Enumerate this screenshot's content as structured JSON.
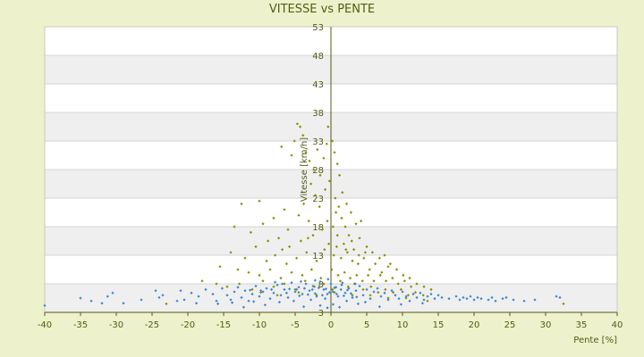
{
  "chart_data": {
    "type": "scatter",
    "title": "VITESSE vs PENTE",
    "xlabel": "Pente [%]",
    "ylabel": "Vitesse [km/h]",
    "xlim": [
      -40,
      40
    ],
    "ylim": [
      3,
      53
    ],
    "x_ticks": [
      -40,
      -35,
      -30,
      -25,
      -20,
      -15,
      -10,
      -5,
      0,
      5,
      10,
      15,
      20,
      25,
      30,
      35,
      40
    ],
    "y_ticks": [
      3,
      8,
      13,
      18,
      23,
      28,
      33,
      38,
      43,
      48,
      53
    ],
    "grid": true,
    "series": [
      {
        "color": "#8c8c00",
        "marker": "diamond",
        "points": [
          [
            -6.9,
            32.0
          ],
          [
            -5.5,
            30.5
          ],
          [
            -5.1,
            33.0
          ],
          [
            -4.7,
            36.0
          ],
          [
            -4.3,
            35.5
          ],
          [
            -3.9,
            34.0
          ],
          [
            -3.5,
            31.0
          ],
          [
            -3.0,
            29.5
          ],
          [
            -2.4,
            28.0
          ],
          [
            -1.9,
            31.5
          ],
          [
            -1.5,
            27.0
          ],
          [
            -1.0,
            30.0
          ],
          [
            -0.6,
            32.5
          ],
          [
            -0.4,
            35.5
          ],
          [
            0.2,
            33.0
          ],
          [
            0.5,
            31.0
          ],
          [
            0.9,
            29.0
          ],
          [
            -2.8,
            25.5
          ],
          [
            -0.2,
            26.0
          ],
          [
            1.2,
            27.0
          ],
          [
            -12.5,
            22.0
          ],
          [
            -10.0,
            22.5
          ],
          [
            -9.5,
            18.5
          ],
          [
            -8.0,
            19.5
          ],
          [
            -6.5,
            21.0
          ],
          [
            -6.0,
            17.5
          ],
          [
            -4.5,
            20.0
          ],
          [
            -3.8,
            22.0
          ],
          [
            -3.1,
            19.0
          ],
          [
            -2.2,
            23.5
          ],
          [
            -1.6,
            21.5
          ],
          [
            -0.8,
            24.5
          ],
          [
            0.6,
            23.0
          ],
          [
            1.1,
            21.5
          ],
          [
            1.6,
            24.0
          ],
          [
            2.2,
            22.0
          ],
          [
            2.8,
            20.5
          ],
          [
            3.5,
            18.5
          ],
          [
            4.2,
            19.0
          ],
          [
            -13.5,
            18.0
          ],
          [
            -11.2,
            17.0
          ],
          [
            -7.3,
            16.0
          ],
          [
            -5.8,
            14.5
          ],
          [
            -2.5,
            16.5
          ],
          [
            -1.2,
            17.5
          ],
          [
            0.3,
            18.0
          ],
          [
            0.9,
            16.5
          ],
          [
            1.8,
            15.0
          ],
          [
            2.5,
            16.5
          ],
          [
            3.2,
            14.0
          ],
          [
            -14.0,
            13.5
          ],
          [
            -12.0,
            12.5
          ],
          [
            -10.5,
            14.5
          ],
          [
            -9.0,
            12.0
          ],
          [
            -7.8,
            13.0
          ],
          [
            -6.2,
            11.5
          ],
          [
            -4.8,
            12.5
          ],
          [
            -3.4,
            13.5
          ],
          [
            -2.0,
            12.0
          ],
          [
            -0.9,
            14.0
          ],
          [
            0.4,
            13.0
          ],
          [
            1.4,
            12.5
          ],
          [
            2.3,
            13.5
          ],
          [
            3.0,
            12.0
          ],
          [
            3.8,
            11.5
          ],
          [
            4.6,
            12.5
          ],
          [
            5.4,
            10.5
          ],
          [
            6.2,
            11.5
          ],
          [
            7.1,
            10.0
          ],
          [
            8.0,
            11.0
          ],
          [
            -15.5,
            11.0
          ],
          [
            -13.0,
            10.5
          ],
          [
            -11.5,
            10.0
          ],
          [
            -10.0,
            9.5
          ],
          [
            -8.5,
            10.5
          ],
          [
            -7.0,
            9.0
          ],
          [
            -5.5,
            10.0
          ],
          [
            -4.0,
            9.5
          ],
          [
            -2.7,
            10.5
          ],
          [
            -1.4,
            9.0
          ],
          [
            0.1,
            10.5
          ],
          [
            1.0,
            9.5
          ],
          [
            1.9,
            10.0
          ],
          [
            2.7,
            9.0
          ],
          [
            3.6,
            9.5
          ],
          [
            4.4,
            8.5
          ],
          [
            5.2,
            9.5
          ],
          [
            6.0,
            8.5
          ],
          [
            6.9,
            9.5
          ],
          [
            7.7,
            8.5
          ],
          [
            8.6,
            9.0
          ],
          [
            9.4,
            8.0
          ],
          [
            10.3,
            8.5
          ],
          [
            11.2,
            7.5
          ],
          [
            12.0,
            8.0
          ],
          [
            13.0,
            7.5
          ],
          [
            14.0,
            7.0
          ],
          [
            -18.0,
            8.5
          ],
          [
            -16.0,
            8.0
          ],
          [
            -14.5,
            7.5
          ],
          [
            -12.8,
            8.0
          ],
          [
            -11.0,
            7.0
          ],
          [
            -9.5,
            8.5
          ],
          [
            -8.0,
            7.5
          ],
          [
            -6.5,
            8.0
          ],
          [
            -5.0,
            7.0
          ],
          [
            -3.6,
            8.5
          ],
          [
            -2.3,
            7.5
          ],
          [
            -1.0,
            8.0
          ],
          [
            0.2,
            7.0
          ],
          [
            1.3,
            8.5
          ],
          [
            2.4,
            7.5
          ],
          [
            3.4,
            8.0
          ],
          [
            4.5,
            7.0
          ],
          [
            5.6,
            7.5
          ],
          [
            6.6,
            6.5
          ],
          [
            7.6,
            7.0
          ],
          [
            8.7,
            6.5
          ],
          [
            9.8,
            7.0
          ],
          [
            10.8,
            6.0
          ],
          [
            11.8,
            6.5
          ],
          [
            12.9,
            6.0
          ],
          [
            1.5,
            19.5
          ],
          [
            0.7,
            20.5
          ],
          [
            -0.5,
            19.0
          ],
          [
            2.0,
            18.0
          ],
          [
            4.0,
            16.0
          ],
          [
            5.0,
            14.5
          ],
          [
            5.8,
            13.5
          ],
          [
            6.8,
            12.5
          ],
          [
            7.5,
            13.0
          ],
          [
            8.3,
            11.5
          ],
          [
            9.2,
            10.5
          ],
          [
            10.1,
            9.5
          ],
          [
            11.0,
            9.0
          ],
          [
            -8.8,
            15.5
          ],
          [
            -6.8,
            14.0
          ],
          [
            -4.2,
            15.5
          ],
          [
            -3.2,
            16.0
          ],
          [
            -0.3,
            15.0
          ],
          [
            0.8,
            14.5
          ],
          [
            2.1,
            14.0
          ],
          [
            2.9,
            15.5
          ],
          [
            3.9,
            13.0
          ],
          [
            4.8,
            13.5
          ],
          [
            -9.8,
            6.5
          ],
          [
            -7.5,
            6.0
          ],
          [
            -4.5,
            6.5
          ],
          [
            -2.0,
            6.0
          ],
          [
            0.5,
            6.5
          ],
          [
            3.0,
            6.0
          ],
          [
            5.5,
            6.0
          ],
          [
            8.0,
            5.5
          ],
          [
            10.5,
            5.5
          ],
          [
            13.5,
            5.0
          ],
          [
            32.5,
            4.5
          ],
          [
            -23.0,
            4.5
          ]
        ]
      },
      {
        "color": "#3a86d0",
        "marker": "diamond",
        "points": [
          [
            -40.0,
            4.2
          ],
          [
            -35.0,
            5.5
          ],
          [
            -32.0,
            4.6
          ],
          [
            -31.2,
            5.8
          ],
          [
            -30.5,
            6.4
          ],
          [
            -29.0,
            4.6
          ],
          [
            -24.5,
            6.8
          ],
          [
            -24.0,
            5.6
          ],
          [
            -23.5,
            6.0
          ],
          [
            -21.0,
            6.8
          ],
          [
            -20.5,
            5.2
          ],
          [
            -19.5,
            6.4
          ],
          [
            -18.5,
            5.8
          ],
          [
            -17.5,
            7.0
          ],
          [
            -16.5,
            6.2
          ],
          [
            -16.0,
            5.0
          ],
          [
            -15.2,
            7.2
          ],
          [
            -14.5,
            6.0
          ],
          [
            -14.0,
            5.2
          ],
          [
            -13.5,
            6.6
          ],
          [
            -13.0,
            7.4
          ],
          [
            -12.5,
            5.6
          ],
          [
            -12.0,
            6.8
          ],
          [
            -11.5,
            5.0
          ],
          [
            -11.0,
            6.2
          ],
          [
            -10.5,
            7.6
          ],
          [
            -10.0,
            5.8
          ],
          [
            -9.5,
            6.6
          ],
          [
            -9.0,
            7.2
          ],
          [
            -8.5,
            5.4
          ],
          [
            -8.0,
            6.4
          ],
          [
            -7.5,
            7.8
          ],
          [
            -7.0,
            6.0
          ],
          [
            -6.5,
            7.0
          ],
          [
            -6.0,
            5.6
          ],
          [
            -5.5,
            8.2
          ],
          [
            -5.0,
            6.6
          ],
          [
            -4.5,
            7.4
          ],
          [
            -4.0,
            6.2
          ],
          [
            -3.5,
            8.0
          ],
          [
            -3.0,
            6.8
          ],
          [
            -2.5,
            7.6
          ],
          [
            -2.0,
            5.8
          ],
          [
            -1.5,
            8.4
          ],
          [
            -1.0,
            7.0
          ],
          [
            -0.5,
            6.2
          ],
          [
            0.0,
            8.0
          ],
          [
            0.3,
            6.6
          ],
          [
            0.7,
            7.4
          ],
          [
            1.0,
            5.8
          ],
          [
            1.5,
            7.8
          ],
          [
            2.0,
            6.4
          ],
          [
            2.5,
            7.2
          ],
          [
            3.0,
            5.6
          ],
          [
            3.5,
            6.8
          ],
          [
            4.0,
            7.6
          ],
          [
            4.5,
            6.0
          ],
          [
            5.0,
            7.0
          ],
          [
            5.5,
            5.4
          ],
          [
            6.0,
            6.6
          ],
          [
            6.5,
            7.2
          ],
          [
            7.0,
            5.8
          ],
          [
            7.5,
            6.4
          ],
          [
            8.0,
            5.2
          ],
          [
            8.5,
            6.8
          ],
          [
            9.0,
            6.0
          ],
          [
            9.5,
            5.4
          ],
          [
            10.0,
            6.6
          ],
          [
            10.5,
            5.8
          ],
          [
            11.0,
            5.0
          ],
          [
            11.5,
            6.2
          ],
          [
            12.0,
            5.6
          ],
          [
            12.5,
            6.4
          ],
          [
            13.0,
            5.2
          ],
          [
            13.5,
            5.8
          ],
          [
            14.0,
            6.2
          ],
          [
            14.5,
            5.4
          ],
          [
            15.0,
            6.0
          ],
          [
            15.5,
            5.6
          ],
          [
            16.5,
            5.4
          ],
          [
            17.5,
            5.8
          ],
          [
            18.0,
            5.2
          ],
          [
            18.5,
            5.6
          ],
          [
            19.0,
            5.4
          ],
          [
            19.5,
            5.8
          ],
          [
            20.0,
            5.2
          ],
          [
            20.5,
            5.6
          ],
          [
            21.0,
            5.4
          ],
          [
            22.0,
            5.2
          ],
          [
            22.5,
            5.6
          ],
          [
            23.0,
            5.0
          ],
          [
            24.0,
            5.4
          ],
          [
            24.5,
            5.6
          ],
          [
            25.5,
            5.2
          ],
          [
            27.0,
            5.0
          ],
          [
            28.5,
            5.2
          ],
          [
            31.5,
            5.8
          ],
          [
            32.0,
            5.6
          ],
          [
            -1.5,
            4.2
          ],
          [
            -0.5,
            3.8
          ],
          [
            0.3,
            4.4
          ],
          [
            1.2,
            3.9
          ],
          [
            -3.8,
            4.0
          ],
          [
            -9.2,
            4.3
          ],
          [
            -15.8,
            4.5
          ],
          [
            -12.2,
            3.9
          ],
          [
            3.8,
            4.5
          ],
          [
            6.8,
            4.0
          ],
          [
            9.8,
            4.4
          ],
          [
            12.8,
            4.6
          ],
          [
            -5.2,
            5.0
          ],
          [
            -2.8,
            5.2
          ],
          [
            -0.8,
            5.4
          ],
          [
            2.2,
            5.0
          ],
          [
            4.8,
            4.8
          ],
          [
            -7.2,
            4.8
          ],
          [
            -10.8,
            4.9
          ],
          [
            -13.8,
            4.7
          ],
          [
            -18.8,
            4.6
          ],
          [
            -21.5,
            5.0
          ],
          [
            -26.5,
            5.2
          ],
          [
            -33.5,
            5.0
          ],
          [
            -4.4,
            5.9
          ],
          [
            -3.2,
            6.1
          ],
          [
            -2.2,
            6.3
          ],
          [
            -1.2,
            6.0
          ],
          [
            -0.2,
            6.5
          ],
          [
            0.8,
            6.2
          ],
          [
            1.8,
            5.9
          ],
          [
            2.8,
            6.3
          ],
          [
            3.6,
            5.7
          ],
          [
            -6.2,
            6.4
          ],
          [
            -5.8,
            7.1
          ],
          [
            -4.8,
            7.0
          ],
          [
            -3.7,
            7.2
          ],
          [
            -2.6,
            7.0
          ],
          [
            -1.7,
            7.3
          ],
          [
            -0.7,
            7.1
          ],
          [
            0.5,
            7.3
          ],
          [
            1.4,
            7.0
          ],
          [
            2.3,
            6.9
          ],
          [
            -8.3,
            7.0
          ],
          [
            -9.8,
            6.8
          ],
          [
            -11.3,
            6.9
          ],
          [
            -7.8,
            8.3
          ],
          [
            -6.8,
            8.0
          ],
          [
            -4.2,
            8.4
          ],
          [
            -2.2,
            8.6
          ],
          [
            -0.4,
            8.8
          ],
          [
            1.6,
            8.2
          ],
          [
            3.3,
            8.0
          ]
        ]
      }
    ]
  }
}
